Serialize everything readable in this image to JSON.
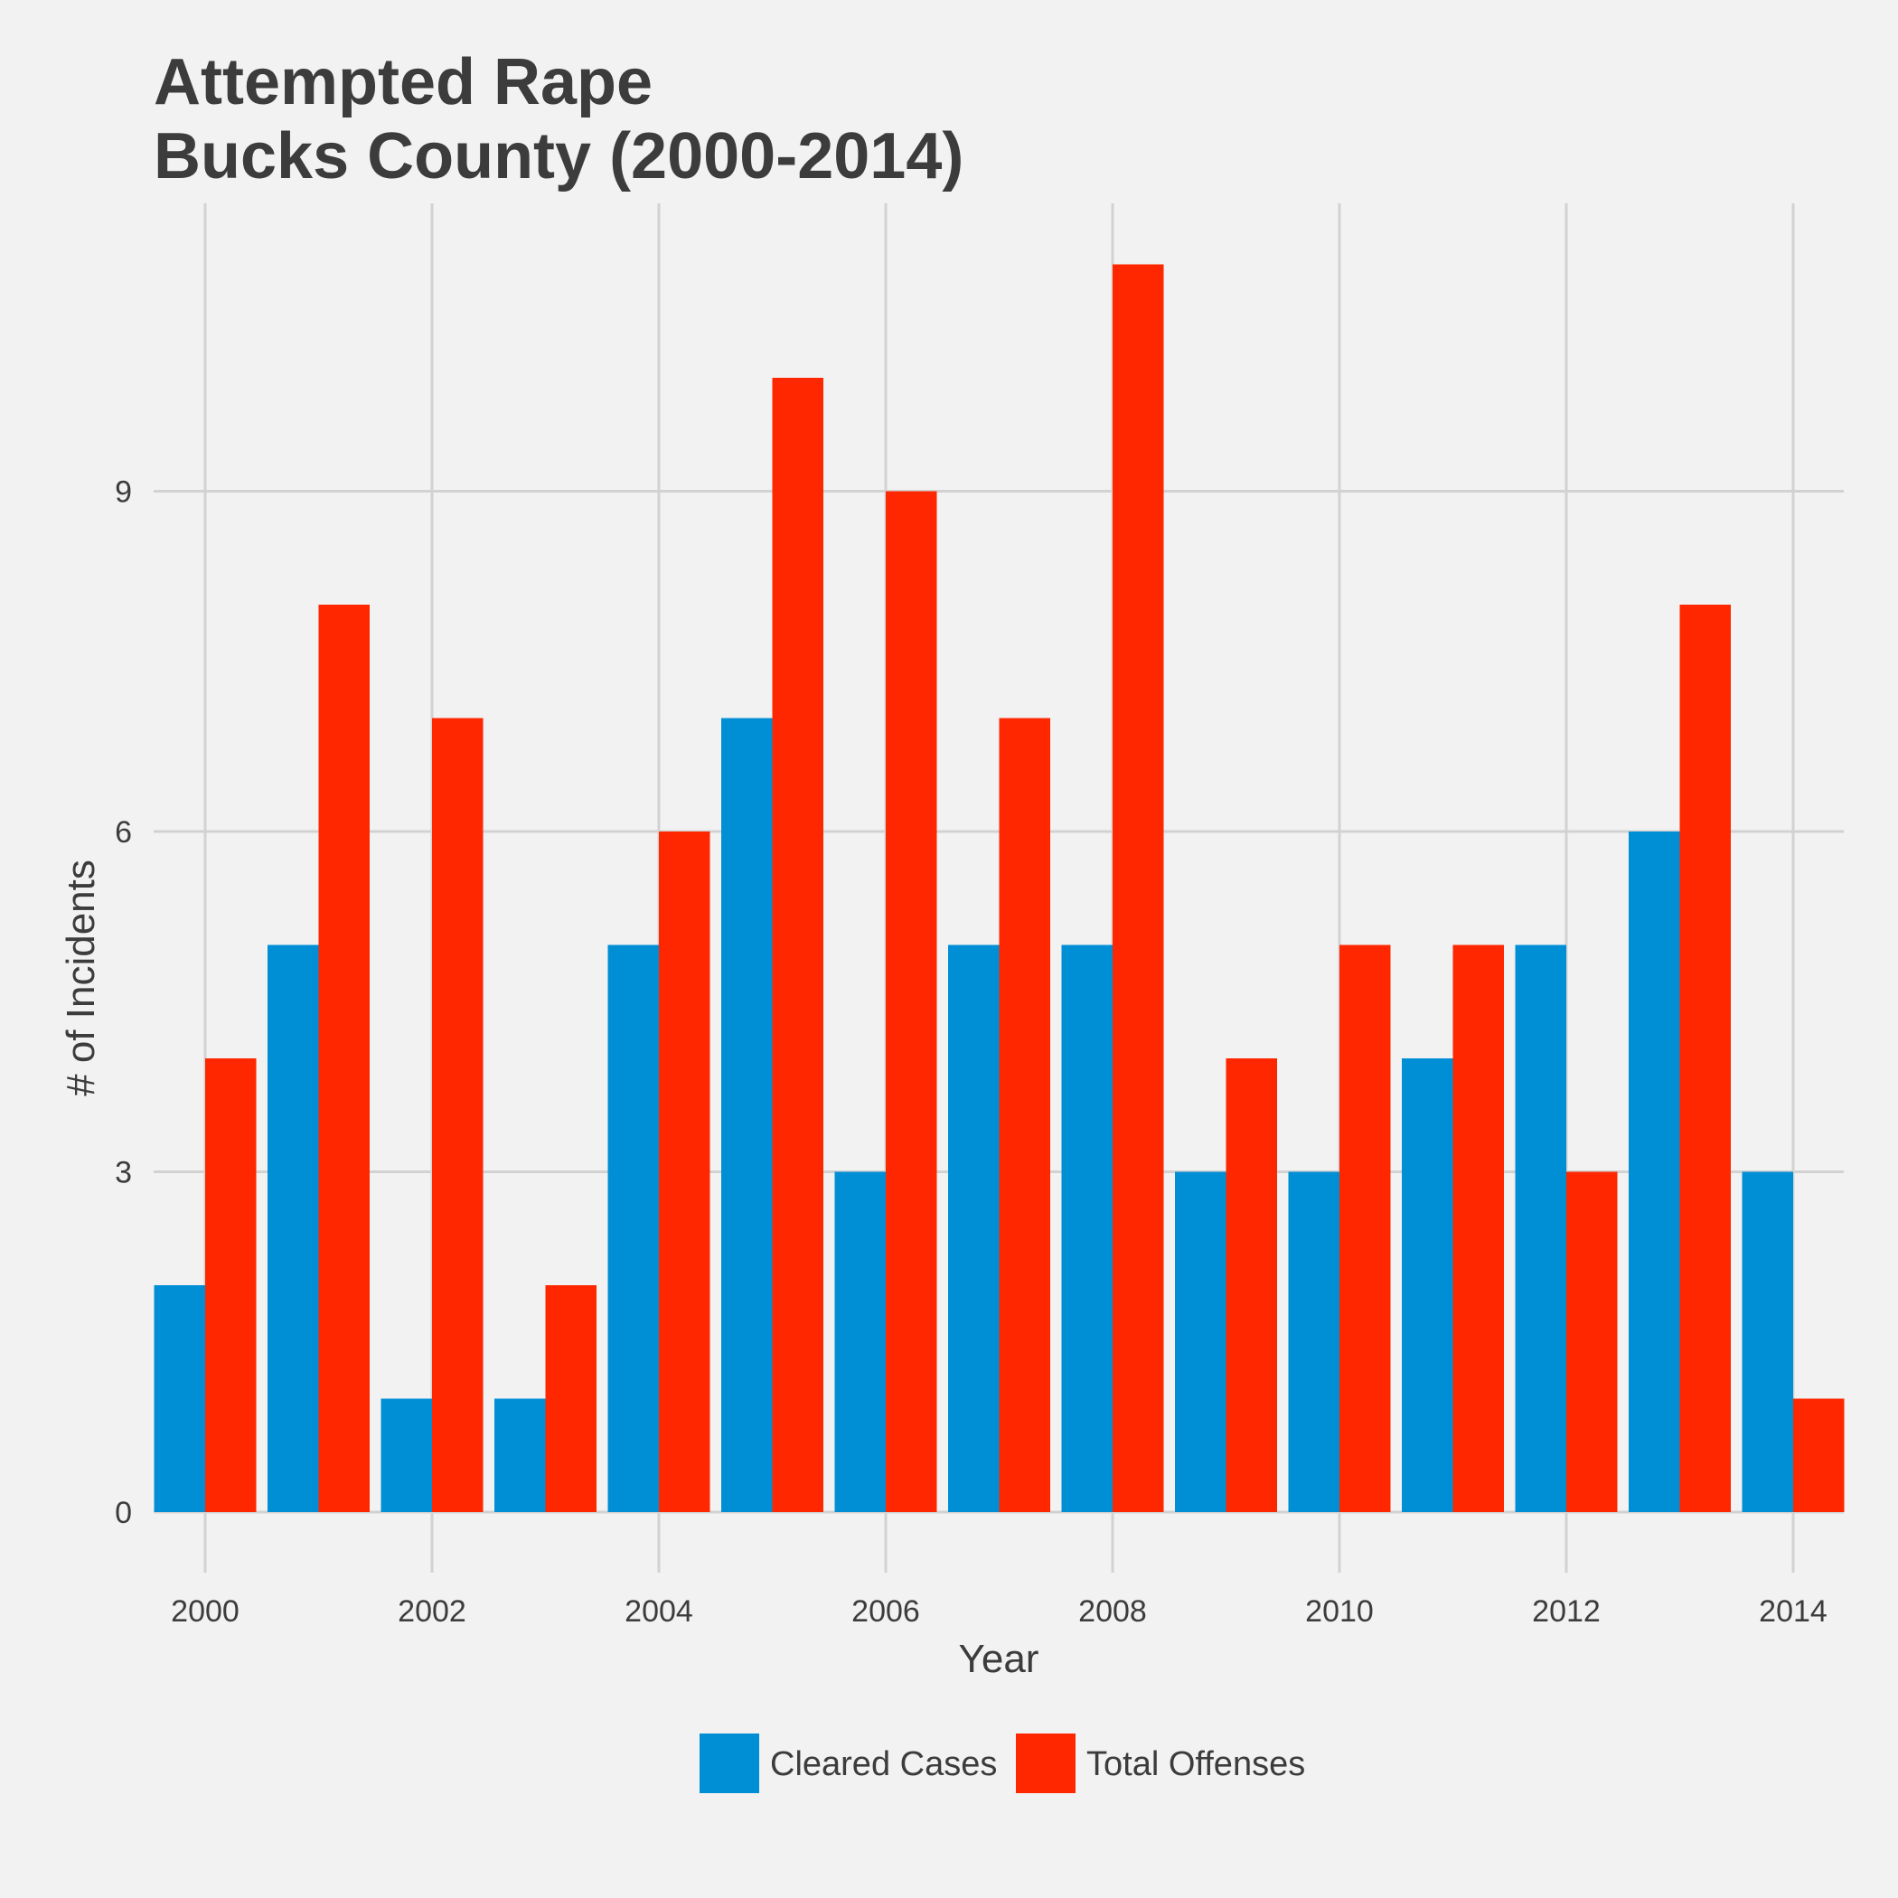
{
  "chart_data": {
    "type": "bar",
    "title": [
      "Attempted Rape",
      "Bucks County (2000-2014)"
    ],
    "xlabel": "Year",
    "ylabel": "# of Incidents",
    "categories": [
      2000,
      2001,
      2002,
      2003,
      2004,
      2005,
      2006,
      2007,
      2008,
      2009,
      2010,
      2011,
      2012,
      2013,
      2014
    ],
    "x_ticks": [
      "2000",
      "2002",
      "2004",
      "2006",
      "2008",
      "2010",
      "2012",
      "2014"
    ],
    "y_ticks": [
      "0",
      "3",
      "6",
      "9"
    ],
    "ylim": [
      0,
      11
    ],
    "grid": true,
    "legend_position": "bottom",
    "series": [
      {
        "name": "Cleared Cases",
        "color": "#008fd5",
        "values": [
          2,
          5,
          1,
          1,
          5,
          7,
          3,
          5,
          5,
          3,
          3,
          4,
          5,
          6,
          3
        ]
      },
      {
        "name": "Total Offenses",
        "color": "#ff2700",
        "values": [
          4,
          8,
          7,
          2,
          6,
          10,
          9,
          7,
          11,
          4,
          5,
          5,
          3,
          8,
          1
        ]
      }
    ]
  }
}
